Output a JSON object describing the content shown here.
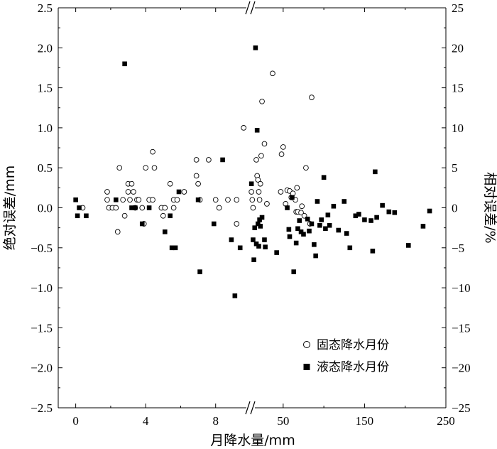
{
  "chart_data": {
    "type": "scatter",
    "xlabel": "月降水量/mm",
    "ylabel_left": "绝对误差/mm",
    "ylabel_right": "相对误差/%",
    "x_segments": [
      {
        "xlim": [
          -1,
          10
        ],
        "ticks": [
          0,
          4,
          8
        ],
        "tick_labels": [
          "0",
          "4",
          "8"
        ]
      },
      {
        "xlim": [
          10,
          250
        ],
        "ticks": [
          50,
          150,
          250
        ],
        "tick_labels": [
          "50",
          "150",
          "250"
        ]
      }
    ],
    "ylim_left": [
      -2.5,
      2.5
    ],
    "yticks_left": [
      "−2.5",
      "−2.0",
      "−1.5",
      "−1.0",
      "−0.5",
      "0.0",
      "0.5",
      "1.0",
      "1.5",
      "2.0",
      "2.5"
    ],
    "ylim_right": [
      -25,
      25
    ],
    "yticks_right": [
      "−25",
      "−20",
      "−15",
      "−10",
      "−5",
      "0",
      "5",
      "10",
      "15",
      "20",
      "25"
    ],
    "legend": {
      "position": "bottom-right",
      "entries": [
        {
          "label": "固态降水月份",
          "marker": "open-circle"
        },
        {
          "label": "液态降水月份",
          "marker": "filled-square"
        }
      ]
    },
    "series": [
      {
        "name": "固态降水月份",
        "marker": "open-circle",
        "axis": "left",
        "points": [
          {
            "x": 0.4,
            "y": 0.0
          },
          {
            "x": 1.8,
            "y": 0.2
          },
          {
            "x": 1.8,
            "y": 0.1
          },
          {
            "x": 1.9,
            "y": 0.0
          },
          {
            "x": 2.1,
            "y": 0.0
          },
          {
            "x": 2.3,
            "y": 0.0
          },
          {
            "x": 2.4,
            "y": -0.3
          },
          {
            "x": 2.5,
            "y": 0.5
          },
          {
            "x": 2.7,
            "y": 0.1
          },
          {
            "x": 2.8,
            "y": -0.1
          },
          {
            "x": 3.0,
            "y": 0.3
          },
          {
            "x": 3.0,
            "y": 0.2
          },
          {
            "x": 3.1,
            "y": 0.1
          },
          {
            "x": 3.2,
            "y": 0.3
          },
          {
            "x": 3.3,
            "y": 0.2
          },
          {
            "x": 3.4,
            "y": 0.0
          },
          {
            "x": 3.5,
            "y": 0.1
          },
          {
            "x": 3.6,
            "y": 0.1
          },
          {
            "x": 3.8,
            "y": 0.0
          },
          {
            "x": 3.9,
            "y": -0.2
          },
          {
            "x": 4.0,
            "y": 0.5
          },
          {
            "x": 4.2,
            "y": 0.1
          },
          {
            "x": 4.4,
            "y": 0.1
          },
          {
            "x": 4.4,
            "y": 0.7
          },
          {
            "x": 4.5,
            "y": 0.5
          },
          {
            "x": 4.9,
            "y": 0.0
          },
          {
            "x": 5.0,
            "y": -0.1
          },
          {
            "x": 5.1,
            "y": 0.0
          },
          {
            "x": 5.4,
            "y": 0.3
          },
          {
            "x": 5.6,
            "y": 0.1
          },
          {
            "x": 5.6,
            "y": 0.0
          },
          {
            "x": 5.8,
            "y": 0.1
          },
          {
            "x": 6.2,
            "y": 0.2
          },
          {
            "x": 6.9,
            "y": 0.4
          },
          {
            "x": 6.9,
            "y": 0.6
          },
          {
            "x": 7.0,
            "y": 0.3
          },
          {
            "x": 7.1,
            "y": 0.1
          },
          {
            "x": 7.6,
            "y": 0.6
          },
          {
            "x": 8.0,
            "y": 0.1
          },
          {
            "x": 8.2,
            "y": 0.0
          },
          {
            "x": 8.7,
            "y": 0.1
          },
          {
            "x": 9.2,
            "y": 0.1
          },
          {
            "x": 9.2,
            "y": -0.2
          },
          {
            "x": 9.6,
            "y": 1.0
          },
          {
            "x": 11,
            "y": 0.2
          },
          {
            "x": 12,
            "y": 0.1
          },
          {
            "x": 13,
            "y": 0.0
          },
          {
            "x": 17,
            "y": 0.6
          },
          {
            "x": 18,
            "y": 0.4
          },
          {
            "x": 19,
            "y": 0.35
          },
          {
            "x": 20,
            "y": 0.2
          },
          {
            "x": 21,
            "y": 0.1
          },
          {
            "x": 22,
            "y": 0.3
          },
          {
            "x": 23,
            "y": 0.65
          },
          {
            "x": 24,
            "y": 1.33
          },
          {
            "x": 27,
            "y": 0.8
          },
          {
            "x": 30,
            "y": 0.05
          },
          {
            "x": 37,
            "y": 1.68
          },
          {
            "x": 47,
            "y": 0.2
          },
          {
            "x": 48,
            "y": 0.67
          },
          {
            "x": 50,
            "y": 0.76
          },
          {
            "x": 53,
            "y": 0.05
          },
          {
            "x": 55,
            "y": 0.22
          },
          {
            "x": 58,
            "y": 0.21
          },
          {
            "x": 60,
            "y": 0.13
          },
          {
            "x": 62,
            "y": 0.18
          },
          {
            "x": 65,
            "y": 0.1
          },
          {
            "x": 66,
            "y": -0.05
          },
          {
            "x": 67,
            "y": 0.25
          },
          {
            "x": 68,
            "y": -0.05
          },
          {
            "x": 72,
            "y": -0.06
          },
          {
            "x": 73,
            "y": 0.02
          },
          {
            "x": 76,
            "y": -0.1
          },
          {
            "x": 78,
            "y": 0.5
          },
          {
            "x": 83,
            "y": -0.2
          },
          {
            "x": 85,
            "y": 1.38
          }
        ]
      },
      {
        "name": "液态降水月份",
        "marker": "filled-square",
        "axis": "right",
        "points": [
          {
            "x": 0.0,
            "y": 1
          },
          {
            "x": 0.1,
            "y": -1
          },
          {
            "x": 0.2,
            "y": 0
          },
          {
            "x": 0.6,
            "y": -1
          },
          {
            "x": 2.3,
            "y": 1
          },
          {
            "x": 2.8,
            "y": 18
          },
          {
            "x": 3.2,
            "y": 0
          },
          {
            "x": 3.4,
            "y": 0
          },
          {
            "x": 3.8,
            "y": -2
          },
          {
            "x": 4.2,
            "y": 0
          },
          {
            "x": 5.1,
            "y": -3
          },
          {
            "x": 5.4,
            "y": -1
          },
          {
            "x": 5.5,
            "y": -5
          },
          {
            "x": 5.7,
            "y": -5
          },
          {
            "x": 5.9,
            "y": 2
          },
          {
            "x": 7.0,
            "y": 1
          },
          {
            "x": 7.1,
            "y": -8
          },
          {
            "x": 7.9,
            "y": -2
          },
          {
            "x": 8.4,
            "y": 6
          },
          {
            "x": 8.9,
            "y": -4
          },
          {
            "x": 9.1,
            "y": -11
          },
          {
            "x": 9.4,
            "y": -5
          },
          {
            "x": 11,
            "y": 3
          },
          {
            "x": 13,
            "y": -4
          },
          {
            "x": 14,
            "y": -6.5
          },
          {
            "x": 15,
            "y": -2.5
          },
          {
            "x": 16,
            "y": 20
          },
          {
            "x": 17,
            "y": -4.5
          },
          {
            "x": 18,
            "y": 9.7
          },
          {
            "x": 19,
            "y": -2
          },
          {
            "x": 20,
            "y": -4.8
          },
          {
            "x": 21,
            "y": -1.5
          },
          {
            "x": 22,
            "y": -2.3
          },
          {
            "x": 24,
            "y": -1.2
          },
          {
            "x": 27,
            "y": -4
          },
          {
            "x": 28,
            "y": -4.9
          },
          {
            "x": 42,
            "y": -5.6
          },
          {
            "x": 55,
            "y": 0
          },
          {
            "x": 57,
            "y": -2.7
          },
          {
            "x": 58,
            "y": -3.6
          },
          {
            "x": 61,
            "y": 1.3
          },
          {
            "x": 63,
            "y": -8
          },
          {
            "x": 66,
            "y": -4.4
          },
          {
            "x": 68,
            "y": -2.6
          },
          {
            "x": 70,
            "y": -1.6
          },
          {
            "x": 72,
            "y": -3
          },
          {
            "x": 75,
            "y": -3.3
          },
          {
            "x": 80,
            "y": -1.4
          },
          {
            "x": 82,
            "y": -2.9
          },
          {
            "x": 85,
            "y": -2
          },
          {
            "x": 88,
            "y": -4.6
          },
          {
            "x": 90,
            "y": -6
          },
          {
            "x": 92,
            "y": 0.8
          },
          {
            "x": 95,
            "y": -2.2
          },
          {
            "x": 97,
            "y": -1.5
          },
          {
            "x": 100,
            "y": 3.8
          },
          {
            "x": 102,
            "y": -2.6
          },
          {
            "x": 105,
            "y": -0.9
          },
          {
            "x": 107,
            "y": -2.2
          },
          {
            "x": 112,
            "y": 0.2
          },
          {
            "x": 118,
            "y": -2.8
          },
          {
            "x": 125,
            "y": 0.8
          },
          {
            "x": 128,
            "y": -3.2
          },
          {
            "x": 132,
            "y": -5
          },
          {
            "x": 139,
            "y": -1
          },
          {
            "x": 143,
            "y": -0.8
          },
          {
            "x": 150,
            "y": -1.5
          },
          {
            "x": 158,
            "y": -1.6
          },
          {
            "x": 160,
            "y": -5.4
          },
          {
            "x": 163,
            "y": 4.5
          },
          {
            "x": 165,
            "y": -1.2
          },
          {
            "x": 172,
            "y": 0.3
          },
          {
            "x": 180,
            "y": -0.5
          },
          {
            "x": 187,
            "y": -0.6
          },
          {
            "x": 204,
            "y": -4.7
          },
          {
            "x": 222,
            "y": -2.3
          },
          {
            "x": 230,
            "y": -0.4
          }
        ]
      }
    ]
  }
}
